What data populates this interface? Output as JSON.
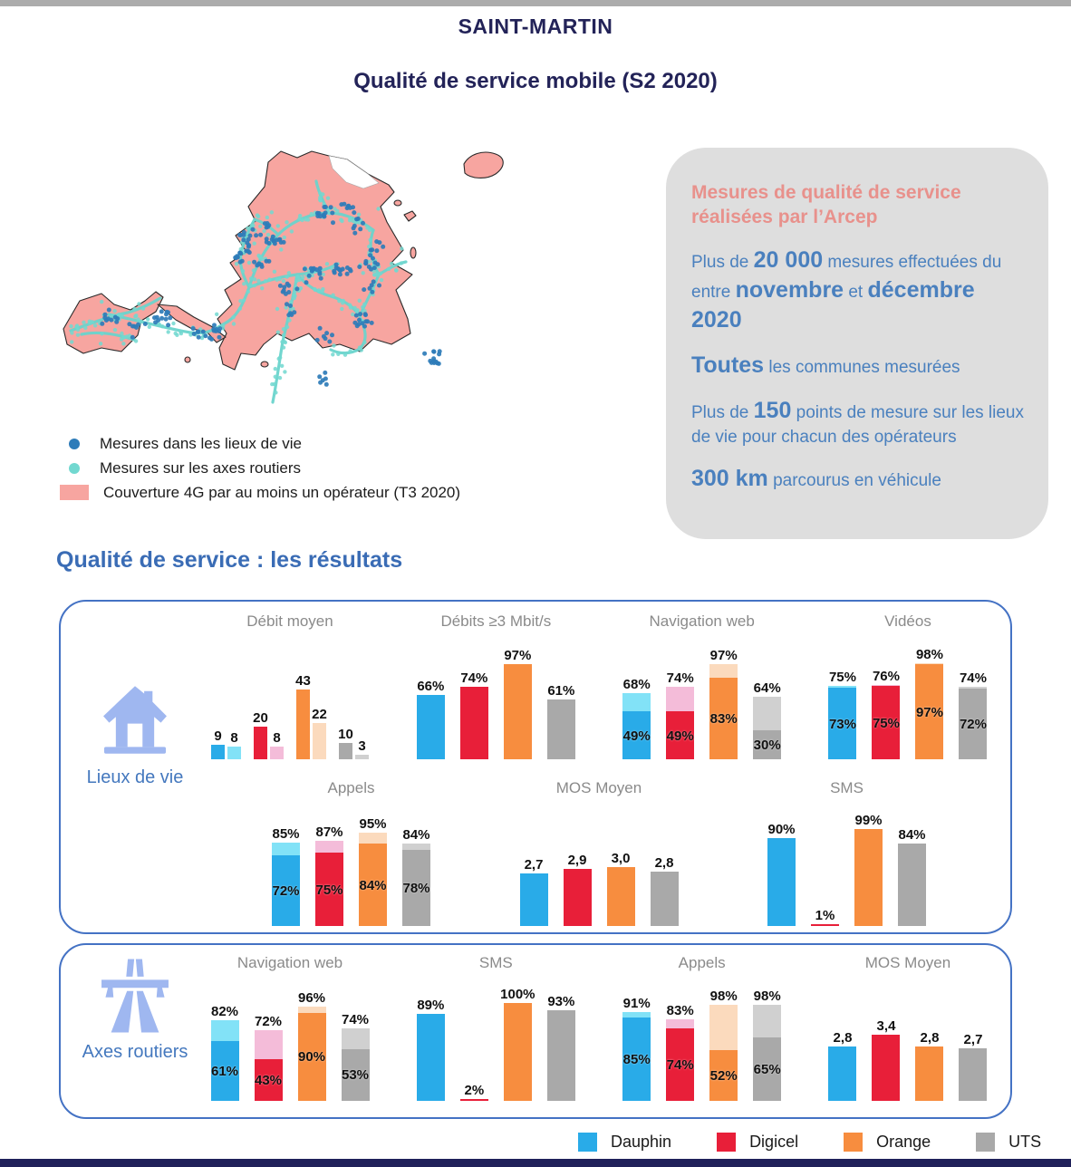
{
  "page": {
    "title": "SAINT-MARTIN",
    "subtitle": "Qualité de service mobile (S2 2020)",
    "results_heading": "Qualité de service : les résultats"
  },
  "map": {
    "legend": [
      {
        "marker": "dot",
        "color": "#2E7CB9",
        "label": "Mesures dans les lieux de vie"
      },
      {
        "marker": "dot",
        "color": "#72D8D0",
        "label": "Mesures sur les axes routiers"
      },
      {
        "marker": "swatch",
        "color": "#F7A5A0",
        "label": "Couverture 4G par au moins un opérateur (T3 2020)"
      }
    ]
  },
  "info_box": {
    "heading": "Mesures de qualité de service réalisées par l’Arcep",
    "paragraphs": [
      [
        {
          "t": "Plus de "
        },
        {
          "t": "20 000",
          "b": 1
        },
        {
          "t": " mesures effectuées du entre "
        },
        {
          "t": "novembre",
          "b": 1
        },
        {
          "t": " et "
        },
        {
          "t": "décembre 2020",
          "b": 1
        }
      ],
      [
        {
          "t": "Toutes",
          "b": 1
        },
        {
          "t": " les communes mesurées"
        }
      ],
      [
        {
          "t": "Plus de "
        },
        {
          "t": "150",
          "b": 1
        },
        {
          "t": " points de mesure sur les lieux de vie pour chacun des opérateurs"
        }
      ],
      [
        {
          "t": "300 km",
          "b": 1
        },
        {
          "t": " parcourus en véhicule"
        }
      ]
    ]
  },
  "chart_data": {
    "type": "bar",
    "categories": [
      "Dauphin",
      "Digicel",
      "Orange",
      "UTS"
    ],
    "legend_position": "bottom",
    "operators": [
      {
        "name": "Dauphin",
        "color": "#29ABE8",
        "light": "#82E2F7"
      },
      {
        "name": "Digicel",
        "color": "#E81F39",
        "light": "#F4BCD9"
      },
      {
        "name": "Orange",
        "color": "#F78D3F",
        "light": "#FBDABD"
      },
      {
        "name": "UTS",
        "color": "#A9A9A9",
        "light": "#D0D0D0"
      }
    ],
    "panels": [
      {
        "label": "Lieux de vie",
        "icon": "house-icon",
        "rows": [
          [
            {
              "title": "Débit moyen",
              "type": "pairs",
              "max": 60,
              "series": [
                {
                  "name": "serie-1",
                  "values": [
                    9,
                    20,
                    43,
                    10
                  ],
                  "labels": [
                    "9",
                    "20",
                    "43",
                    "10"
                  ]
                },
                {
                  "name": "serie-2",
                  "values": [
                    8,
                    8,
                    22,
                    3
                  ],
                  "labels": [
                    "8",
                    "8",
                    "22",
                    "3"
                  ]
                }
              ]
            },
            {
              "title": "Débits ≥3 Mbit/s",
              "type": "single",
              "max": 100,
              "values": [
                66,
                74,
                97,
                61
              ],
              "labels": [
                "66%",
                "74%",
                "97%",
                "61%"
              ]
            },
            {
              "title": "Navigation web",
              "type": "stacked",
              "max": 100,
              "totals": [
                68,
                74,
                97,
                64
              ],
              "solids": [
                49,
                49,
                83,
                30
              ],
              "total_labels": [
                "68%",
                "74%",
                "97%",
                "64%"
              ],
              "solid_labels": [
                "49%",
                "49%",
                "83%",
                "30%"
              ]
            },
            {
              "title": "Vidéos",
              "type": "stacked",
              "max": 100,
              "totals": [
                75,
                76,
                98,
                74
              ],
              "solids": [
                73,
                75,
                97,
                72
              ],
              "total_labels": [
                "75%",
                "76%",
                "98%",
                "74%"
              ],
              "solid_labels": [
                "73%",
                "75%",
                "97%",
                "72%"
              ]
            }
          ],
          [
            {
              "title": "Appels",
              "type": "stacked",
              "max": 100,
              "totals": [
                85,
                87,
                95,
                84
              ],
              "solids": [
                72,
                75,
                84,
                78
              ],
              "total_labels": [
                "85%",
                "87%",
                "95%",
                "84%"
              ],
              "solid_labels": [
                "72%",
                "75%",
                "84%",
                "78%"
              ]
            },
            {
              "title": "MOS Moyen",
              "type": "single",
              "max": 5,
              "values": [
                2.7,
                2.9,
                3.0,
                2.8
              ],
              "labels": [
                "2,7",
                "2,9",
                "3,0",
                "2,8"
              ]
            },
            {
              "title": "SMS",
              "type": "single",
              "max": 100,
              "values": [
                90,
                1,
                99,
                84
              ],
              "labels": [
                "90%",
                "1%",
                "99%",
                "84%"
              ]
            }
          ]
        ]
      },
      {
        "label": "Axes routiers",
        "icon": "highway-icon",
        "rows": [
          [
            {
              "title": "Navigation web",
              "type": "stacked",
              "max": 100,
              "totals": [
                82,
                72,
                96,
                74
              ],
              "solids": [
                61,
                43,
                90,
                53
              ],
              "total_labels": [
                "82%",
                "72%",
                "96%",
                "74%"
              ],
              "solid_labels": [
                "61%",
                "43%",
                "90%",
                "53%"
              ]
            },
            {
              "title": "SMS",
              "type": "single",
              "max": 100,
              "values": [
                89,
                2,
                100,
                93
              ],
              "labels": [
                "89%",
                "2%",
                "100%",
                "93%"
              ]
            },
            {
              "title": "Appels",
              "type": "stacked",
              "max": 100,
              "totals": [
                91,
                83,
                98,
                98
              ],
              "solids": [
                85,
                74,
                52,
                65
              ],
              "total_labels": [
                "91%",
                "83%",
                "98%",
                "98%"
              ],
              "solid_labels": [
                "85%",
                "74%",
                "52%",
                "65%"
              ]
            },
            {
              "title": "MOS Moyen",
              "type": "single",
              "max": 5,
              "values": [
                2.8,
                3.4,
                2.8,
                2.7
              ],
              "labels": [
                "2,8",
                "3,4",
                "2,8",
                "2,7"
              ]
            }
          ]
        ]
      }
    ]
  }
}
